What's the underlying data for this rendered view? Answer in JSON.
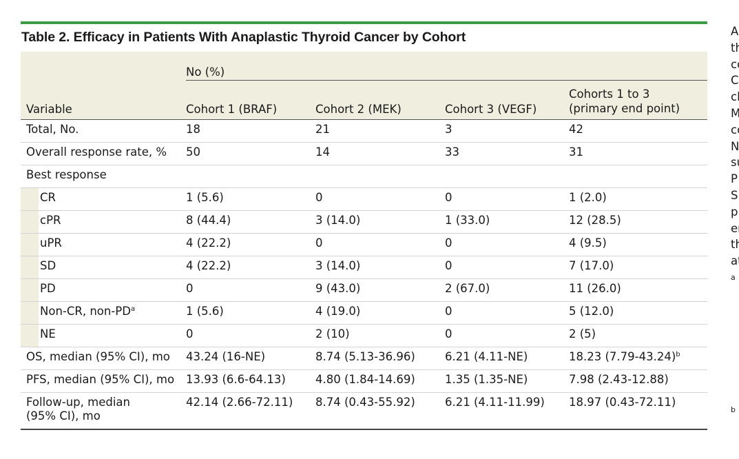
{
  "title": "Table 2. Efficacy in Patients With Anaplastic Thyroid Cancer by Cohort",
  "header": {
    "group_label": "No (%)",
    "variable_label": "Variable",
    "cohorts": [
      {
        "line1": "",
        "line2": "Cohort 1 (BRAF)"
      },
      {
        "line1": "",
        "line2": "Cohort 2 (MEK)"
      },
      {
        "line1": "",
        "line2": "Cohort 3 (VEGF)"
      },
      {
        "line1": "Cohorts 1 to 3",
        "line2": "(primary end point)"
      }
    ]
  },
  "rows": [
    {
      "label": "Total, No.",
      "values": [
        "18",
        "21",
        "3",
        "42"
      ]
    },
    {
      "label": "Overall response rate, %",
      "values": [
        "50",
        "14",
        "33",
        "31"
      ]
    },
    {
      "label": "Best response",
      "values": [
        "",
        "",
        "",
        ""
      ]
    },
    {
      "label": "CR",
      "values": [
        "1 (5.6)",
        "0",
        "0",
        "1 (2.0)"
      ]
    },
    {
      "label": "cPR",
      "values": [
        "8 (44.4)",
        "3 (14.0)",
        "1 (33.0)",
        "12 (28.5)"
      ]
    },
    {
      "label": "uPR",
      "values": [
        "4 (22.2)",
        "0",
        "0",
        "4 (9.5)"
      ]
    },
    {
      "label": "SD",
      "values": [
        "4 (22.2)",
        "3 (14.0)",
        "0",
        "7 (17.0)"
      ]
    },
    {
      "label": "PD",
      "values": [
        "0",
        "9 (43.0)",
        "2 (67.0)",
        "11 (26.0)"
      ]
    },
    {
      "label": "Non-CR, non-PD",
      "label_sup": "a",
      "values": [
        "1 (5.6)",
        "4 (19.0)",
        "0",
        "5 (12.0)"
      ]
    },
    {
      "label": "NE",
      "values": [
        "0",
        "2 (10)",
        "0",
        "2 (5)"
      ]
    },
    {
      "label": "OS, median (95% CI), mo",
      "values": [
        "43.24 (16-NE)",
        "8.74 (5.13-36.96)",
        "6.21 (4.11-NE)",
        "18.23 (7.79-43.24)"
      ],
      "last_sup": "b"
    },
    {
      "label": "PFS, median (95% CI), mo",
      "values": [
        "13.93 (6.6-64.13)",
        "4.80 (1.84-14.69)",
        "1.35 (1.35-NE)",
        "7.98 (2.43-12.88)"
      ]
    },
    {
      "label_line1": "Follow-up, median",
      "label_line2": "(95% CI), mo",
      "values": [
        "42.14 (2.66-72.11)",
        "8.74 (0.43-55.92)",
        "6.21 (4.11-11.99)",
        "18.97 (0.43-72.11)"
      ]
    }
  ],
  "side_text": {
    "lines": [
      "A",
      "th",
      "co",
      "C",
      "cl",
      "M",
      "co",
      "N",
      "su",
      "P",
      "SI",
      "p",
      "er",
      "th",
      "at"
    ],
    "footnote_a": "a",
    "footnote_b": "b"
  },
  "colors": {
    "accent_rule": "#3d9a47",
    "header_bg": "#efeedf"
  }
}
